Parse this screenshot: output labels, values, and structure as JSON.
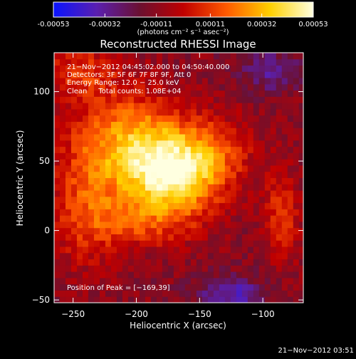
{
  "colorbar": {
    "ticks": [
      "-0.00053",
      "-0.00032",
      "-0.00011",
      "0.00011",
      "0.00032",
      "0.00053"
    ],
    "label": "(photons cm⁻² s⁻¹ asec⁻²)",
    "colors": [
      "#0a14ff",
      "#5a1fb0",
      "#6b1030",
      "#c00000",
      "#ff5a00",
      "#ffd000",
      "#ffffe0"
    ]
  },
  "chart_data": {
    "type": "heatmap",
    "title": "Reconstructed RHESSI Image",
    "xlabel": "Heliocentric X (arcsec)",
    "ylabel": "Heliocentric Y (arcsec)",
    "xlim": [
      -265,
      -68
    ],
    "ylim": [
      -52,
      128
    ],
    "x_ticks": [
      {
        "value": -250,
        "label": "−250"
      },
      {
        "value": -200,
        "label": "−200"
      },
      {
        "value": -150,
        "label": "−150"
      },
      {
        "value": -100,
        "label": "−100"
      }
    ],
    "y_ticks": [
      {
        "value": -50,
        "label": "−50"
      },
      {
        "value": 0,
        "label": "0"
      },
      {
        "value": 50,
        "label": "50"
      },
      {
        "value": 100,
        "label": "100"
      }
    ],
    "color_range": [
      -0.00053,
      0.00053
    ],
    "peak": [
      -169,
      39
    ],
    "info_lines": [
      "21−Nov−2012 04:45:02.000 to 04:50:40.000",
      "Detectors: 3F 5F 6F 7F 8F 9F, Att 0",
      "Energy Range: 12.0 − 25.0 keV",
      "Clean     Total counts: 1.08E+04"
    ],
    "peak_label": "Position of Peak = [−169,39]"
  },
  "footer": {
    "timestamp": "21−Nov−2012 03:51"
  }
}
